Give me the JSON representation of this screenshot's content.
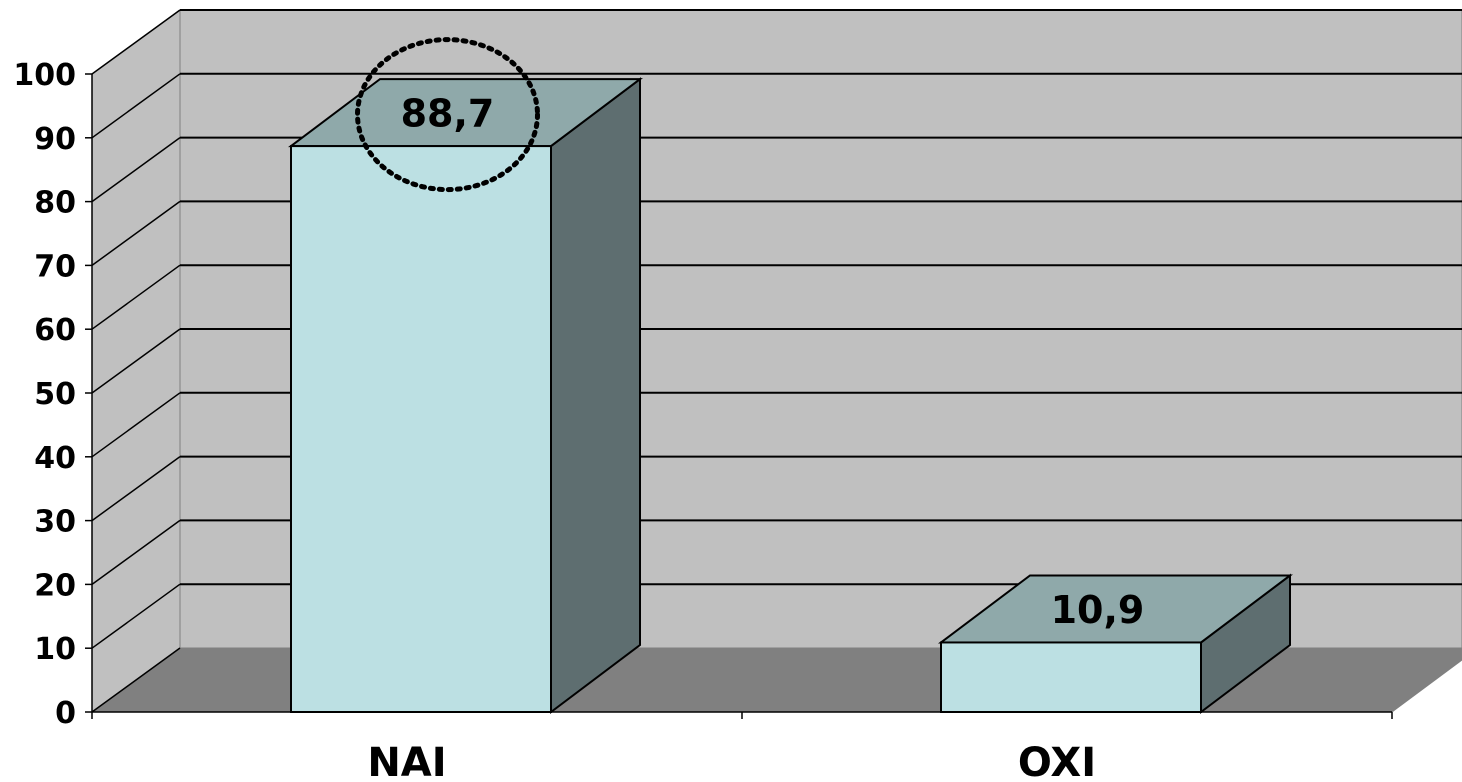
{
  "chart_data": {
    "type": "bar",
    "categories": [
      "NAI",
      "OXI"
    ],
    "values": [
      88.7,
      10.9
    ],
    "data_labels": [
      "88,7",
      "10,9"
    ],
    "ylim": [
      0,
      100
    ],
    "yticks": [
      "0",
      "10",
      "20",
      "30",
      "40",
      "50",
      "60",
      "70",
      "80",
      "90",
      "100"
    ],
    "grid": true,
    "legend": "none",
    "style": "3d-column",
    "highlight": "dotted-circle-around-first-label",
    "colors": {
      "bar_front": "#bce0e3",
      "bar_top": "#8fa9aa",
      "bar_side": "#5e6e70",
      "wall": "#c0c0c0",
      "floor": "#808080",
      "grid": "#000000"
    }
  }
}
